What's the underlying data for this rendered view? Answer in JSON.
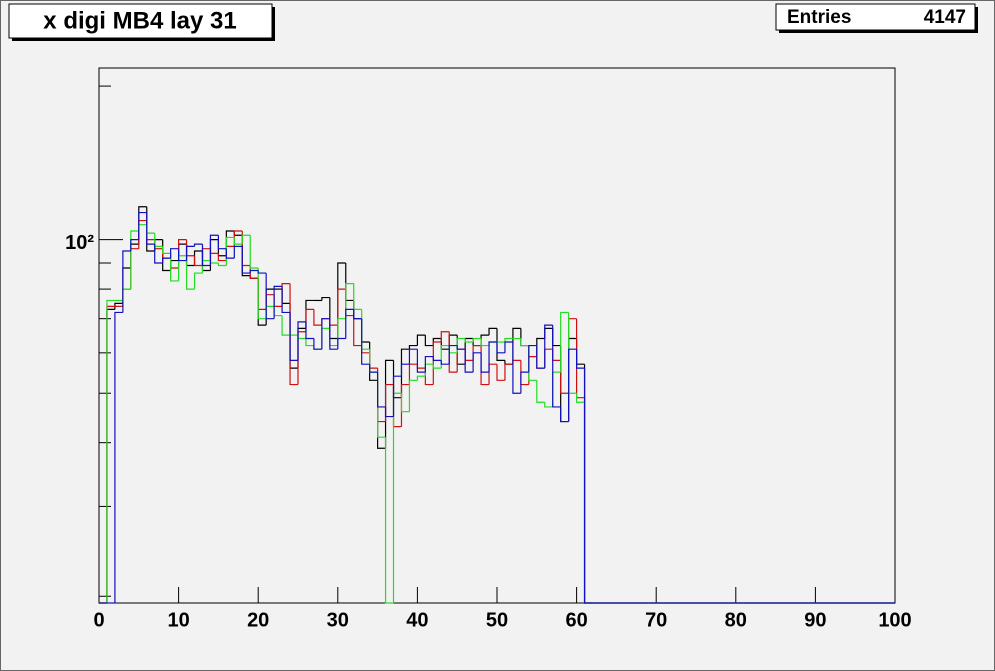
{
  "chart_data": {
    "type": "histogram",
    "title": "x digi MB4 lay 31",
    "stats": {
      "label": "Entries",
      "value": 4147
    },
    "bins": [
      0,
      1,
      2,
      3,
      4,
      5,
      6,
      7,
      8,
      9,
      10,
      11,
      12,
      13,
      14,
      15,
      16,
      17,
      18,
      19,
      20,
      21,
      22,
      23,
      24,
      25,
      26,
      27,
      28,
      29,
      30,
      31,
      32,
      33,
      34,
      35,
      36,
      37,
      38,
      39,
      40,
      41,
      42,
      43,
      44,
      45,
      46,
      47,
      48,
      49,
      50,
      51,
      52,
      53,
      54,
      55,
      56,
      57,
      58,
      59,
      60,
      61,
      62,
      63,
      64,
      65,
      66,
      67,
      68,
      69,
      70,
      71,
      72,
      73,
      74,
      75,
      76,
      77,
      78,
      79,
      80,
      81,
      82,
      83,
      84,
      85,
      86,
      87,
      88,
      89,
      90,
      91,
      92,
      93,
      94,
      95,
      96,
      97,
      98,
      99,
      100
    ],
    "series": [
      {
        "color": "#000000",
        "values": [
          0,
          73,
          75,
          88,
          98,
          116,
          95,
          100,
          87,
          91,
          98,
          89,
          95,
          87,
          100,
          93,
          104,
          102,
          85,
          84,
          68,
          80,
          80,
          75,
          56,
          67,
          76,
          76,
          77,
          64,
          90,
          76,
          70,
          63,
          53,
          39,
          58,
          49,
          61,
          62,
          65,
          62,
          64,
          61,
          65,
          57,
          64,
          62,
          65,
          67,
          58,
          57,
          67,
          62,
          59,
          64,
          67,
          62,
          44,
          64,
          57,
          0,
          0,
          0,
          0,
          0,
          0,
          0,
          0,
          0,
          0,
          0,
          0,
          0,
          0,
          0,
          0,
          0,
          0,
          0,
          0,
          0,
          0,
          0,
          0,
          0,
          0,
          0,
          0,
          0,
          0,
          0,
          0,
          0,
          0,
          0,
          0,
          0,
          0,
          0
        ]
      },
      {
        "color": "#d01010",
        "values": [
          0,
          74,
          74,
          80,
          96,
          109,
          100,
          96,
          92,
          88,
          100,
          93,
          89,
          96,
          94,
          91,
          97,
          104,
          89,
          84,
          73,
          78,
          74,
          82,
          52,
          66,
          73,
          68,
          70,
          68,
          80,
          71,
          62,
          60,
          56,
          44,
          52,
          43,
          52,
          57,
          56,
          52,
          63,
          66,
          55,
          61,
          58,
          62,
          52,
          57,
          53,
          57,
          58,
          52,
          59,
          56,
          61,
          58,
          50,
          70,
          49,
          0,
          0,
          0,
          0,
          0,
          0,
          0,
          0,
          0,
          0,
          0,
          0,
          0,
          0,
          0,
          0,
          0,
          0,
          0,
          0,
          0,
          0,
          0,
          0,
          0,
          0,
          0,
          0,
          0,
          0,
          0,
          0,
          0,
          0,
          0,
          0,
          0,
          0,
          0
        ]
      },
      {
        "color": "#22dd22",
        "values": [
          0,
          76,
          76,
          80,
          104,
          107,
          103,
          97,
          94,
          83,
          93,
          80,
          86,
          91,
          90,
          89,
          101,
          98,
          102,
          88,
          70,
          74,
          71,
          65,
          65,
          64,
          62,
          61,
          67,
          62,
          70,
          82,
          73,
          61,
          55,
          41,
          0,
          50,
          46,
          53,
          54,
          57,
          56,
          62,
          60,
          64,
          63,
          64,
          62,
          63,
          63,
          64,
          64,
          62,
          53,
          48,
          47,
          55,
          72,
          50,
          48,
          0,
          0,
          0,
          0,
          0,
          0,
          0,
          0,
          0,
          0,
          0,
          0,
          0,
          0,
          0,
          0,
          0,
          0,
          0,
          0,
          0,
          0,
          0,
          0,
          0,
          0,
          0,
          0,
          0,
          0,
          0,
          0,
          0,
          0,
          0,
          0,
          0,
          0,
          0
        ]
      },
      {
        "color": "#1010c0",
        "values": [
          0,
          0,
          72,
          95,
          100,
          113,
          98,
          90,
          92,
          96,
          91,
          97,
          98,
          89,
          102,
          96,
          92,
          97,
          86,
          87,
          86,
          70,
          81,
          72,
          58,
          69,
          64,
          61,
          70,
          61,
          64,
          73,
          70,
          57,
          55,
          47,
          45,
          54,
          57,
          61,
          55,
          59,
          58,
          57,
          62,
          61,
          55,
          60,
          55,
          63,
          60,
          63,
          50,
          55,
          62,
          56,
          68,
          47,
          44,
          61,
          56,
          0,
          0,
          0,
          0,
          0,
          0,
          0,
          0,
          0,
          0,
          0,
          0,
          0,
          0,
          0,
          0,
          0,
          0,
          0,
          0,
          0,
          0,
          0,
          0,
          0,
          0,
          0,
          0,
          0,
          0,
          0,
          0,
          0,
          0,
          0,
          0,
          0,
          0,
          0
        ]
      }
    ],
    "xlim": [
      0,
      100
    ],
    "xticks": [
      0,
      10,
      20,
      30,
      40,
      50,
      60,
      70,
      80,
      90,
      100
    ],
    "ylim": [
      19.4,
      217
    ],
    "ylog": true,
    "yticks": [
      {
        "value": 100,
        "label": "10²"
      }
    ],
    "yminorticks": [
      20,
      30,
      40,
      50,
      60,
      70,
      80,
      90,
      200
    ]
  }
}
